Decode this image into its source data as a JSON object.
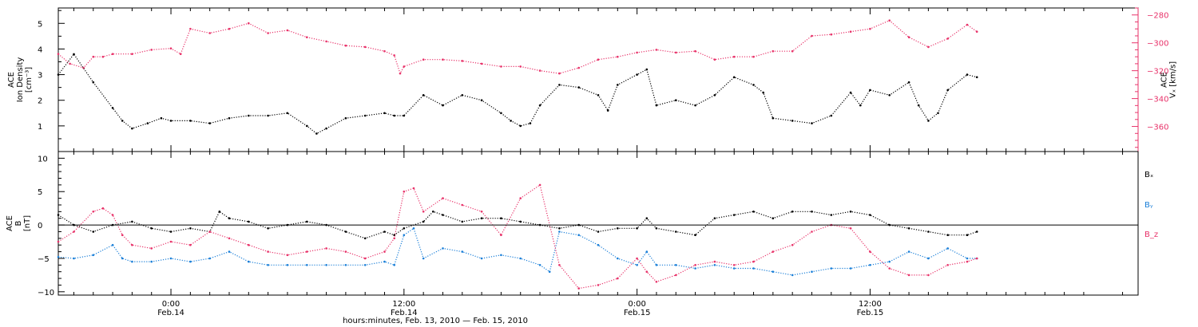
{
  "figure": {
    "x_title": "hours:minutes, Feb. 13, 2010 — Feb. 15, 2010",
    "time_ticks": [
      {
        "hours": 24,
        "time": "0:00",
        "date": "Feb.14"
      },
      {
        "hours": 36,
        "time": "12:00",
        "date": "Feb.14"
      },
      {
        "hours": 48,
        "time": "0:00",
        "date": "Feb.15"
      },
      {
        "hours": 60,
        "time": "12:00",
        "date": "Feb.15"
      }
    ],
    "colors": {
      "black": "#000000",
      "pink": "#e8336a",
      "blue": "#1a7fd8"
    }
  },
  "chart_data": [
    {
      "type": "scatter",
      "panel": "density-velocity",
      "x_unit": "hours since Feb. 13, 2010 0:00",
      "xlim": [
        18.2,
        73.8
      ],
      "left_axis": {
        "label_lines": [
          "ACE",
          "Ion Density",
          "[cm⁻³]"
        ],
        "ylim": [
          0,
          5.6
        ],
        "ticks": [
          1,
          2,
          3,
          4,
          5
        ]
      },
      "right_axis": {
        "label_lines": [
          "ACE",
          "Vₓ [km/s]"
        ],
        "ylim": [
          -378,
          -275
        ],
        "ticks": [
          -280,
          -300,
          -320,
          -340,
          -360
        ]
      },
      "series": [
        {
          "name": "Ion Density",
          "axis": "left",
          "color": "#000000",
          "x": [
            18.2,
            19,
            20,
            21,
            21.5,
            22,
            22.8,
            23.5,
            24,
            25,
            26,
            27,
            28,
            29,
            30,
            31,
            31.5,
            32,
            33,
            34,
            35,
            35.5,
            36,
            37,
            38,
            39,
            40,
            41,
            41.5,
            42,
            42.5,
            43,
            44,
            45,
            46,
            46.5,
            47,
            48,
            48.5,
            49,
            50,
            51,
            52,
            53,
            54,
            54.5,
            55,
            56,
            57,
            58,
            59,
            59.5,
            60,
            61,
            62,
            62.5,
            63,
            63.5,
            64,
            65,
            65.5
          ],
          "y": [
            3.0,
            3.8,
            2.7,
            1.7,
            1.2,
            0.9,
            1.1,
            1.3,
            1.2,
            1.2,
            1.1,
            1.3,
            1.4,
            1.4,
            1.5,
            1.0,
            0.7,
            0.9,
            1.3,
            1.4,
            1.5,
            1.4,
            1.4,
            2.2,
            1.8,
            2.2,
            2.0,
            1.5,
            1.2,
            1.0,
            1.1,
            1.8,
            2.6,
            2.5,
            2.2,
            1.6,
            2.6,
            3.0,
            3.2,
            1.8,
            2.0,
            1.8,
            2.2,
            2.9,
            2.6,
            2.3,
            1.3,
            1.2,
            1.1,
            1.4,
            2.3,
            1.8,
            2.4,
            2.2,
            2.7,
            1.8,
            1.2,
            1.5,
            2.4,
            3.0,
            2.9
          ]
        },
        {
          "name": "Vx",
          "axis": "right",
          "color": "#e8336a",
          "x": [
            18.2,
            18.8,
            19.5,
            20,
            20.5,
            21,
            22,
            23,
            24,
            24.5,
            25,
            26,
            27,
            28,
            29,
            30,
            31,
            32,
            33,
            34,
            35,
            35.5,
            35.8,
            36,
            37,
            38,
            39,
            40,
            41,
            42,
            43,
            44,
            45,
            46,
            47,
            48,
            49,
            50,
            51,
            52,
            53,
            54,
            55,
            56,
            57,
            58,
            59,
            60,
            61,
            62,
            63,
            64,
            65,
            65.5
          ],
          "y": [
            -308,
            -315,
            -318,
            -310,
            -310,
            -308,
            -308,
            -305,
            -304,
            -308,
            -290,
            -293,
            -290,
            -286,
            -293,
            -291,
            -296,
            -299,
            -302,
            -303,
            -306,
            -309,
            -322,
            -317,
            -312,
            -312,
            -313,
            -315,
            -317,
            -317,
            -320,
            -322,
            -318,
            -312,
            -310,
            -307,
            -305,
            -307,
            -306,
            -312,
            -310,
            -310,
            -306,
            -306,
            -295,
            -294,
            -292,
            -290,
            -284,
            -296,
            -303,
            -297,
            -287,
            -292
          ]
        }
      ]
    },
    {
      "type": "line",
      "panel": "magnetic-field",
      "x_unit": "hours since Feb. 13, 2010 0:00",
      "xlim": [
        18.2,
        73.8
      ],
      "ylabel_lines": [
        "ACE",
        "B",
        "[nT]"
      ],
      "ylim": [
        -10.5,
        11
      ],
      "ticks": [
        10,
        5,
        0,
        -5,
        -10
      ],
      "zero_line": true,
      "series": [
        {
          "name": "Bₓ",
          "color": "#000000",
          "x": [
            18.2,
            19,
            20,
            21,
            22,
            23,
            24,
            25,
            26,
            26.5,
            27,
            28,
            29,
            30,
            31,
            32,
            33,
            34,
            35,
            35.5,
            36,
            37,
            37.5,
            38,
            39,
            40,
            41,
            42,
            43,
            44,
            45,
            46,
            47,
            48,
            48.5,
            49,
            50,
            51,
            52,
            53,
            54,
            55,
            56,
            57,
            58,
            59,
            60,
            61,
            62,
            63,
            64,
            65,
            65.5
          ],
          "y": [
            1.5,
            0,
            -1,
            0,
            0.5,
            -0.5,
            -1,
            -0.5,
            -1,
            2,
            1,
            0.5,
            -0.5,
            0,
            0.5,
            0,
            -1,
            -2,
            -1,
            -1.5,
            -0.5,
            0.5,
            2,
            1.5,
            0.5,
            1,
            1,
            0.5,
            0,
            -0.5,
            0,
            -1,
            -0.5,
            -0.5,
            1,
            -0.5,
            -1,
            -1.5,
            1,
            1.5,
            2,
            1,
            2,
            2,
            1.5,
            2,
            1.5,
            0,
            -0.5,
            -1,
            -1.5,
            -1.5,
            -1
          ]
        },
        {
          "name": "Bᵧ",
          "color": "#1a7fd8",
          "x": [
            18.2,
            19,
            20,
            21,
            21.5,
            22,
            23,
            24,
            25,
            26,
            27,
            28,
            29,
            30,
            31,
            32,
            33,
            34,
            35,
            35.5,
            36,
            36.5,
            37,
            38,
            39,
            40,
            41,
            42,
            43,
            43.5,
            44,
            45,
            46,
            47,
            48,
            48.5,
            49,
            50,
            51,
            52,
            53,
            54,
            55,
            56,
            57,
            58,
            59,
            60,
            61,
            62,
            63,
            64,
            65,
            65.5
          ],
          "y": [
            -4.8,
            -5,
            -4.5,
            -3,
            -5,
            -5.5,
            -5.5,
            -5,
            -5.5,
            -5,
            -4,
            -5.5,
            -6,
            -6,
            -6,
            -6,
            -6,
            -6,
            -5.5,
            -6,
            -1.5,
            -0.5,
            -5,
            -3.5,
            -4,
            -5,
            -4.5,
            -5,
            -6,
            -7,
            -1,
            -1.5,
            -3,
            -5,
            -6,
            -4,
            -6,
            -6,
            -6.5,
            -6,
            -6.5,
            -6.5,
            -7,
            -7.5,
            -7,
            -6.5,
            -6.5,
            -6,
            -5.5,
            -4,
            -5,
            -3.5,
            -5,
            -5
          ]
        },
        {
          "name": "B_z",
          "color": "#e8336a",
          "x": [
            18.2,
            19,
            20,
            20.5,
            21,
            21.5,
            22,
            23,
            24,
            25,
            26,
            27,
            28,
            29,
            30,
            31,
            32,
            33,
            34,
            35,
            35.5,
            36,
            36.5,
            37,
            38,
            39,
            40,
            41,
            42,
            43,
            44,
            45,
            46,
            47,
            48,
            48.5,
            49,
            50,
            51,
            52,
            53,
            54,
            55,
            56,
            57,
            58,
            59,
            60,
            61,
            62,
            63,
            64,
            65,
            65.5
          ],
          "y": [
            -2.5,
            -1,
            2,
            2.5,
            1.5,
            -1.5,
            -3,
            -3.5,
            -2.5,
            -3,
            -1,
            -2,
            -3,
            -4,
            -4.5,
            -4,
            -3.5,
            -4,
            -5,
            -4,
            -2,
            5,
            5.5,
            2,
            4,
            3,
            2,
            -1.5,
            4,
            6,
            -6,
            -9.5,
            -9,
            -8,
            -5,
            -7,
            -8.5,
            -7.5,
            -6,
            -5.5,
            -6,
            -5.5,
            -4,
            -3,
            -1,
            0,
            -0.5,
            -4,
            -6.5,
            -7.5,
            -7.5,
            -6,
            -5.5,
            -5
          ]
        }
      ]
    }
  ]
}
